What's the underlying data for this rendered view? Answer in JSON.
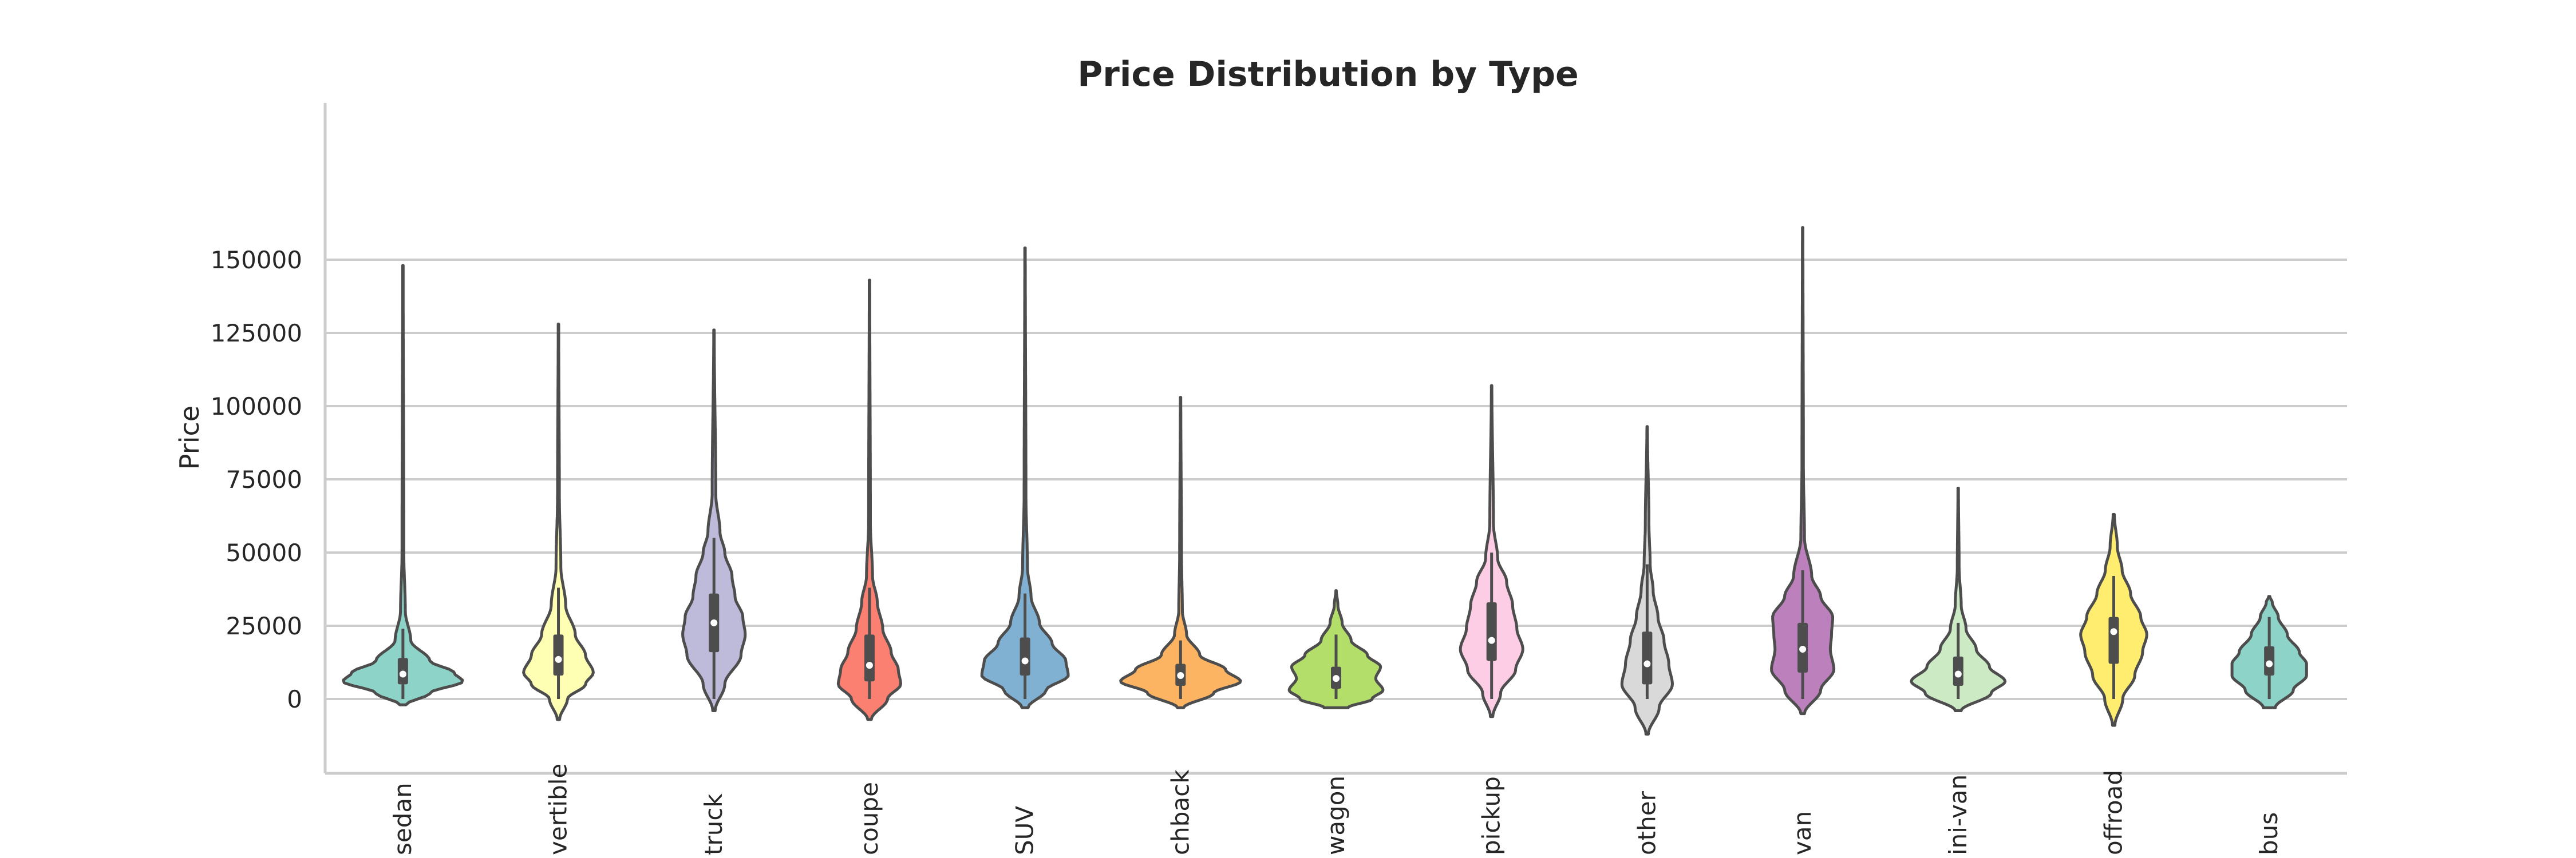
{
  "chart_data": {
    "type": "violin",
    "title": "Price Distribution by Type",
    "xlabel": "",
    "ylabel": "Price",
    "ylim": [
      -21000,
      170000
    ],
    "yticks": [
      0,
      25000,
      50000,
      75000,
      100000,
      125000,
      150000
    ],
    "ytick_labels": [
      "0",
      "25000",
      "50000",
      "75000",
      "100000",
      "125000",
      "150000"
    ],
    "grid": "horizontal",
    "categories": [
      "sedan",
      "convertible",
      "truck",
      "coupe",
      "SUV",
      "hatchback",
      "wagon",
      "pickup",
      "other",
      "van",
      "mini-van",
      "offroad",
      "bus"
    ],
    "category_labels_visible": [
      "sedan",
      "vertible",
      "truck",
      "coupe",
      "SUV",
      "chback",
      "wagon",
      "pickup",
      "other",
      "van",
      "ini-van",
      "offroad",
      "bus"
    ],
    "violins": [
      {
        "category": "sedan",
        "color": "#8dd3c7",
        "min": -2000,
        "max": 148000,
        "q1": 5000,
        "median": 8500,
        "q3": 14000,
        "whisker_low": 0,
        "whisker_high": 24000,
        "density": [
          [
            -2000,
            0.05
          ],
          [
            2000,
            0.45
          ],
          [
            6000,
            1.0
          ],
          [
            9000,
            0.85
          ],
          [
            13000,
            0.45
          ],
          [
            20000,
            0.13
          ],
          [
            30000,
            0.04
          ],
          [
            50000,
            0.015
          ],
          [
            148000,
            0.004
          ]
        ]
      },
      {
        "category": "convertible",
        "color": "#ffffb3",
        "min": -7000,
        "max": 128000,
        "q1": 8000,
        "median": 13500,
        "q3": 22000,
        "whisker_low": 0,
        "whisker_high": 38000,
        "density": [
          [
            -7000,
            0.02
          ],
          [
            0,
            0.15
          ],
          [
            5000,
            0.45
          ],
          [
            9000,
            0.58
          ],
          [
            15000,
            0.45
          ],
          [
            22000,
            0.28
          ],
          [
            32000,
            0.12
          ],
          [
            45000,
            0.04
          ],
          [
            70000,
            0.015
          ],
          [
            128000,
            0.004
          ]
        ]
      },
      {
        "category": "truck",
        "color": "#bebada",
        "min": -4000,
        "max": 126000,
        "q1": 16000,
        "median": 26000,
        "q3": 36000,
        "whisker_low": 0,
        "whisker_high": 55000,
        "density": [
          [
            -4000,
            0.02
          ],
          [
            5000,
            0.18
          ],
          [
            15000,
            0.45
          ],
          [
            22000,
            0.52
          ],
          [
            28000,
            0.48
          ],
          [
            35000,
            0.35
          ],
          [
            42000,
            0.3
          ],
          [
            50000,
            0.18
          ],
          [
            57000,
            0.1
          ],
          [
            70000,
            0.03
          ],
          [
            126000,
            0.004
          ]
        ]
      },
      {
        "category": "coupe",
        "color": "#fb8072",
        "min": -7000,
        "max": 143000,
        "q1": 6000,
        "median": 11500,
        "q3": 22000,
        "whisker_low": 0,
        "whisker_high": 38000,
        "density": [
          [
            -7000,
            0.03
          ],
          [
            0,
            0.3
          ],
          [
            5000,
            0.52
          ],
          [
            10000,
            0.48
          ],
          [
            16000,
            0.36
          ],
          [
            24000,
            0.22
          ],
          [
            33000,
            0.13
          ],
          [
            42000,
            0.05
          ],
          [
            60000,
            0.015
          ],
          [
            143000,
            0.004
          ]
        ]
      },
      {
        "category": "SUV",
        "color": "#80b1d3",
        "min": -3000,
        "max": 154000,
        "q1": 8000,
        "median": 13000,
        "q3": 21000,
        "whisker_low": 0,
        "whisker_high": 36000,
        "density": [
          [
            -3000,
            0.05
          ],
          [
            3000,
            0.35
          ],
          [
            8000,
            0.72
          ],
          [
            13000,
            0.68
          ],
          [
            19000,
            0.45
          ],
          [
            26000,
            0.24
          ],
          [
            35000,
            0.1
          ],
          [
            45000,
            0.04
          ],
          [
            70000,
            0.015
          ],
          [
            154000,
            0.004
          ]
        ]
      },
      {
        "category": "hatchback",
        "color": "#fdb462",
        "min": -3000,
        "max": 103000,
        "q1": 4500,
        "median": 8000,
        "q3": 12000,
        "whisker_low": 0,
        "whisker_high": 20000,
        "density": [
          [
            -3000,
            0.05
          ],
          [
            2000,
            0.55
          ],
          [
            6000,
            1.0
          ],
          [
            10000,
            0.75
          ],
          [
            15000,
            0.32
          ],
          [
            22000,
            0.1
          ],
          [
            30000,
            0.03
          ],
          [
            50000,
            0.015
          ],
          [
            103000,
            0.004
          ]
        ]
      },
      {
        "category": "wagon",
        "color": "#b3de69",
        "min": -3000,
        "max": 37000,
        "q1": 3500,
        "median": 7000,
        "q3": 11000,
        "whisker_low": 0,
        "whisker_high": 22000,
        "density": [
          [
            -3000,
            0.2
          ],
          [
            0,
            0.6
          ],
          [
            3000,
            0.78
          ],
          [
            7000,
            0.66
          ],
          [
            11000,
            0.74
          ],
          [
            15000,
            0.52
          ],
          [
            20000,
            0.25
          ],
          [
            26000,
            0.1
          ],
          [
            32000,
            0.03
          ],
          [
            37000,
            0.004
          ]
        ]
      },
      {
        "category": "pickup",
        "color": "#fccde5",
        "min": -6000,
        "max": 107000,
        "q1": 13000,
        "median": 20000,
        "q3": 33000,
        "whisker_low": 0,
        "whisker_high": 50000,
        "density": [
          [
            -6000,
            0.02
          ],
          [
            2000,
            0.15
          ],
          [
            10000,
            0.4
          ],
          [
            17000,
            0.52
          ],
          [
            24000,
            0.42
          ],
          [
            32000,
            0.35
          ],
          [
            40000,
            0.25
          ],
          [
            48000,
            0.1
          ],
          [
            60000,
            0.03
          ],
          [
            107000,
            0.004
          ]
        ]
      },
      {
        "category": "other",
        "color": "#d9d9d9",
        "min": -12000,
        "max": 93000,
        "q1": 5000,
        "median": 12000,
        "q3": 23000,
        "whisker_low": 0,
        "whisker_high": 46000,
        "density": [
          [
            -12000,
            0.02
          ],
          [
            -3000,
            0.2
          ],
          [
            5000,
            0.42
          ],
          [
            12000,
            0.36
          ],
          [
            20000,
            0.28
          ],
          [
            28000,
            0.18
          ],
          [
            37000,
            0.1
          ],
          [
            46000,
            0.05
          ],
          [
            60000,
            0.03
          ],
          [
            93000,
            0.004
          ]
        ]
      },
      {
        "category": "van",
        "color": "#bc80bd",
        "min": -5000,
        "max": 161000,
        "q1": 9000,
        "median": 17000,
        "q3": 26000,
        "whisker_low": 0,
        "whisker_high": 44000,
        "density": [
          [
            -5000,
            0.03
          ],
          [
            3000,
            0.3
          ],
          [
            10000,
            0.52
          ],
          [
            17000,
            0.46
          ],
          [
            22000,
            0.48
          ],
          [
            28000,
            0.5
          ],
          [
            35000,
            0.3
          ],
          [
            42000,
            0.15
          ],
          [
            55000,
            0.03
          ],
          [
            80000,
            0.012
          ],
          [
            161000,
            0.004
          ]
        ]
      },
      {
        "category": "mini-van",
        "color": "#ccebc5",
        "min": -4000,
        "max": 72000,
        "q1": 4500,
        "median": 8500,
        "q3": 14500,
        "whisker_low": 0,
        "whisker_high": 26000,
        "density": [
          [
            -4000,
            0.05
          ],
          [
            2000,
            0.55
          ],
          [
            6000,
            0.78
          ],
          [
            11000,
            0.52
          ],
          [
            17000,
            0.3
          ],
          [
            24000,
            0.13
          ],
          [
            32000,
            0.05
          ],
          [
            45000,
            0.015
          ],
          [
            72000,
            0.004
          ]
        ]
      },
      {
        "category": "offroad",
        "color": "#ffed6f",
        "min": -9000,
        "max": 63000,
        "q1": 12000,
        "median": 23000,
        "q3": 28000,
        "whisker_low": 0,
        "whisker_high": 42000,
        "density": [
          [
            -9000,
            0.02
          ],
          [
            0,
            0.15
          ],
          [
            8000,
            0.35
          ],
          [
            16000,
            0.48
          ],
          [
            22000,
            0.55
          ],
          [
            28000,
            0.45
          ],
          [
            36000,
            0.28
          ],
          [
            44000,
            0.14
          ],
          [
            52000,
            0.06
          ],
          [
            63000,
            0.01
          ]
        ]
      },
      {
        "category": "bus",
        "color": "#8dd3c7",
        "min": -3000,
        "max": 35000,
        "q1": 8000,
        "median": 12000,
        "q3": 18000,
        "whisker_low": 0,
        "whisker_high": 28000,
        "density": [
          [
            -3000,
            0.1
          ],
          [
            3000,
            0.4
          ],
          [
            8000,
            0.62
          ],
          [
            12000,
            0.62
          ],
          [
            16000,
            0.5
          ],
          [
            22000,
            0.3
          ],
          [
            28000,
            0.15
          ],
          [
            33000,
            0.05
          ],
          [
            35000,
            0.01
          ]
        ]
      }
    ]
  }
}
